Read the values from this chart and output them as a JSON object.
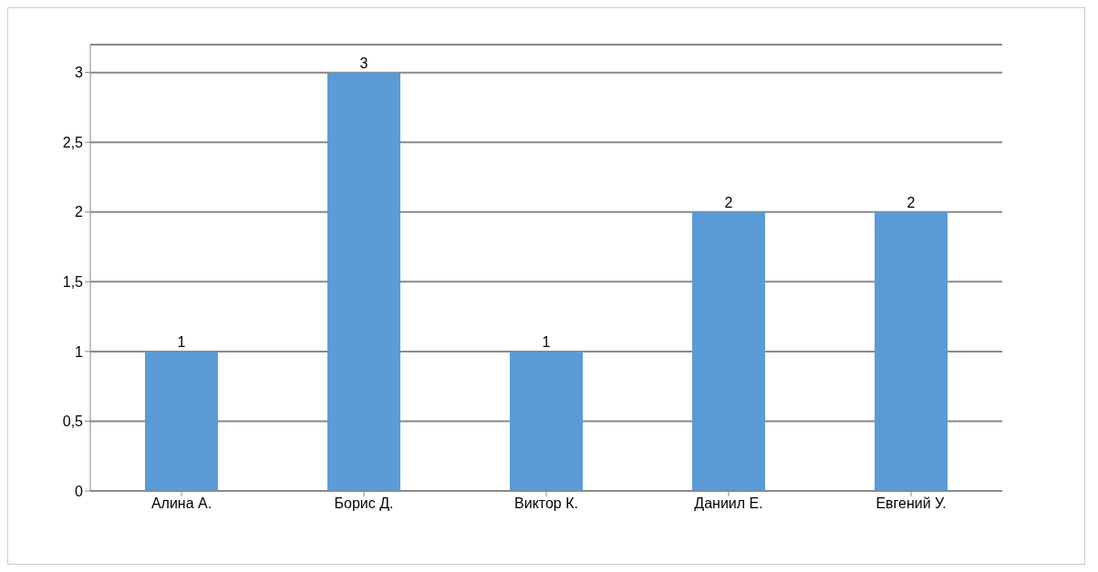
{
  "chart_data": {
    "type": "bar",
    "categories": [
      "Алина А.",
      "Борис Д.",
      "Виктор К.",
      "Даниил Е.",
      "Евгений У."
    ],
    "values": [
      1,
      3,
      1,
      2,
      2
    ],
    "color": "#5b9bd5",
    "ylim": [
      0,
      3.2
    ],
    "yticks": [
      0,
      {
        "value": 0.5,
        "label": "0,5"
      },
      1,
      {
        "value": 1.5,
        "label": "1,5"
      },
      2,
      {
        "value": 2.5,
        "label": "2,5"
      },
      3
    ],
    "grid": "y",
    "data_labels": true
  }
}
